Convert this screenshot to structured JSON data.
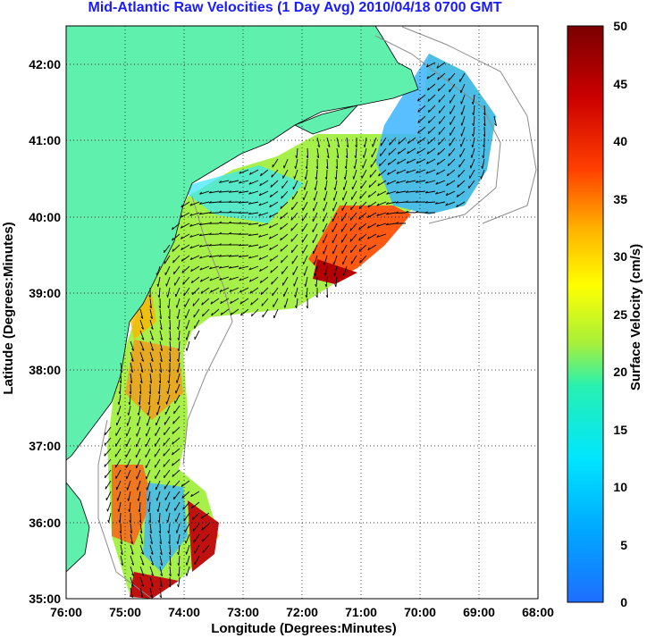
{
  "title": "Mid-Atlantic Raw Velocities (1 Day Avg) 2010/04/18 0700 GMT",
  "map": {
    "xlabel": "Longitude (Degrees:Minutes)",
    "ylabel": "Latitude (Degrees:Minutes)",
    "x_ticks": [
      "76:00",
      "75:00",
      "74:00",
      "73:00",
      "72:00",
      "71:00",
      "70:00",
      "69:00",
      "68:00"
    ],
    "y_ticks": [
      "42:00",
      "41:00",
      "40:00",
      "39:00",
      "38:00",
      "37:00",
      "36:00",
      "35:00"
    ],
    "lon_range": [
      -76,
      -68
    ],
    "lat_range": [
      35,
      42.5
    ],
    "land_color": "#5ff0ae",
    "grid": "dotted"
  },
  "colorbar": {
    "label": "Surface Velocity (cm/s)",
    "ticks": [
      "0",
      "5",
      "10",
      "15",
      "20",
      "25",
      "30",
      "35",
      "40",
      "45",
      "50"
    ],
    "range": [
      0,
      50
    ],
    "colors": [
      "#1e6eff",
      "#00e6ff",
      "#27f0b0",
      "#a8f03a",
      "#ffff00",
      "#ffb000",
      "#ff4000",
      "#cc0000",
      "#7a0000"
    ]
  }
}
